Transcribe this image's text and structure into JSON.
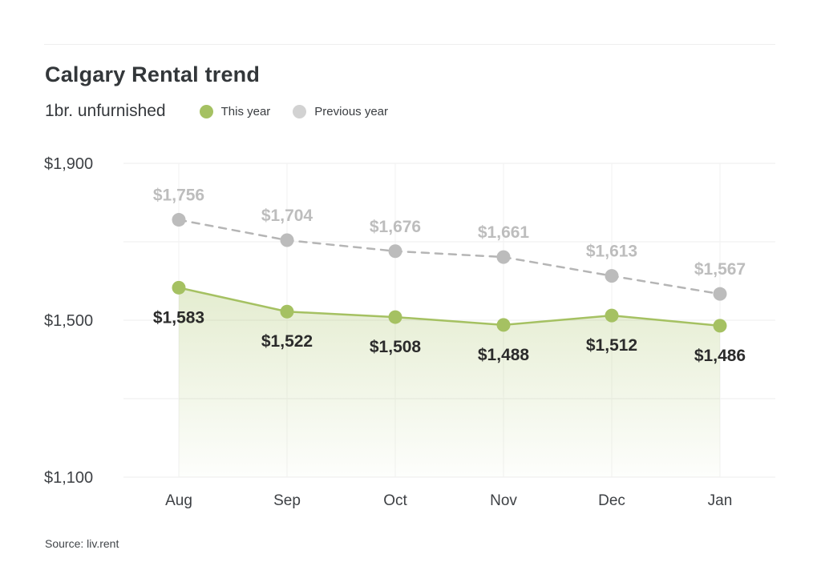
{
  "header": {
    "title": "Calgary Rental trend",
    "subtitle": "1br. unfurnished",
    "legend": [
      {
        "label": "This year",
        "color": "#a5c162"
      },
      {
        "label": "Previous year",
        "color": "#d2d2d2"
      }
    ]
  },
  "chart_data": {
    "type": "line",
    "title": "Calgary Rental trend",
    "subtitle": "1br. unfurnished",
    "categories": [
      "Aug",
      "Sep",
      "Oct",
      "Nov",
      "Dec",
      "Jan"
    ],
    "series": [
      {
        "name": "This year",
        "values": [
          1583,
          1522,
          1508,
          1488,
          1512,
          1486
        ],
        "labels": [
          "$1,583",
          "$1,522",
          "$1,508",
          "$1,488",
          "$1,512",
          "$1,486"
        ],
        "color": "#a5c162",
        "line_style": "solid",
        "area_fill": true,
        "label_color": "#2b2b2b",
        "label_position": "below"
      },
      {
        "name": "Previous year",
        "values": [
          1756,
          1704,
          1676,
          1661,
          1613,
          1567
        ],
        "labels": [
          "$1,756",
          "$1,704",
          "$1,676",
          "$1,661",
          "$1,613",
          "$1,567"
        ],
        "color": "#bcbcbc",
        "line_style": "dashed",
        "area_fill": false,
        "label_color": "#bdbdbd",
        "label_position": "above"
      }
    ],
    "ylim": [
      1100,
      1900
    ],
    "y_ticks": [
      {
        "value": 1900,
        "label": "$1,900"
      },
      {
        "value": 1500,
        "label": "$1,500"
      },
      {
        "value": 1100,
        "label": "$1,100"
      }
    ],
    "gridline_values": [
      1900,
      1700,
      1500,
      1300,
      1100
    ],
    "grid": true,
    "legend_position": "top",
    "xlabel": "",
    "ylabel": ""
  },
  "footer": {
    "source": "Source: liv.rent"
  }
}
